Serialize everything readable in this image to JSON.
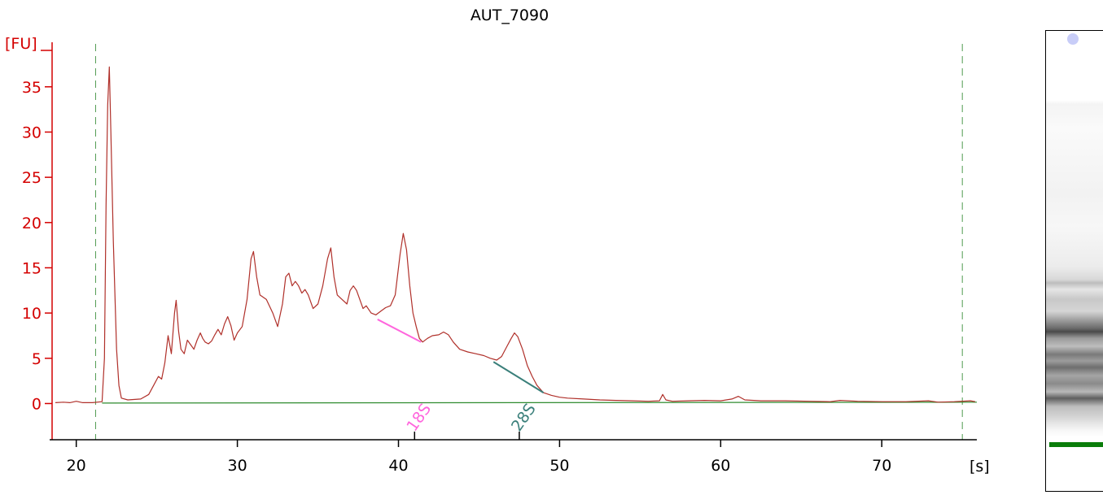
{
  "chart_data": {
    "type": "line",
    "title": "AUT_7090",
    "ylabel": "[FU]",
    "xlabel": "[s]",
    "xlim": [
      18.5,
      75.9
    ],
    "ylim": [
      -4,
      41
    ],
    "x_ticks": [
      20,
      30,
      40,
      50,
      60,
      70
    ],
    "y_ticks": [
      0,
      5,
      10,
      15,
      20,
      25,
      30,
      35
    ],
    "grid": false,
    "colors": {
      "trace": "#b0302a",
      "baseline": "#2e8b2e",
      "y_axis": "#d40000",
      "region_18s": "#ff66dd",
      "region_28s": "#3a7f7a",
      "gel_marker": "#0a7d0a"
    },
    "vertical_markers": [
      21.2,
      75.0
    ],
    "peak_regions": [
      {
        "label": "18S",
        "from": [
          38.7,
          9.3
        ],
        "to": [
          41.4,
          6.8
        ],
        "color": "#ff66dd",
        "tick_x": 41.0
      },
      {
        "label": "28S",
        "from": [
          45.9,
          4.6
        ],
        "to": [
          49.0,
          1.2
        ],
        "color": "#3a7f7a",
        "tick_x": 47.5
      }
    ],
    "series": [
      {
        "points": [
          [
            18.7,
            0.1
          ],
          [
            19.2,
            0.15
          ],
          [
            19.6,
            0.1
          ],
          [
            20.0,
            0.25
          ],
          [
            20.4,
            0.1
          ],
          [
            21.0,
            0.1
          ],
          [
            21.6,
            0.2
          ],
          [
            21.75,
            5.0
          ],
          [
            21.85,
            22.0
          ],
          [
            21.95,
            33.0
          ],
          [
            22.05,
            37.2
          ],
          [
            22.15,
            30.0
          ],
          [
            22.3,
            18.0
          ],
          [
            22.5,
            6.0
          ],
          [
            22.65,
            2.0
          ],
          [
            22.8,
            0.6
          ],
          [
            23.2,
            0.4
          ],
          [
            24.0,
            0.5
          ],
          [
            24.5,
            1.0
          ],
          [
            24.8,
            2.0
          ],
          [
            25.1,
            3.0
          ],
          [
            25.3,
            2.7
          ],
          [
            25.5,
            4.5
          ],
          [
            25.7,
            7.5
          ],
          [
            25.9,
            5.5
          ],
          [
            26.1,
            10.0
          ],
          [
            26.2,
            11.4
          ],
          [
            26.35,
            8.0
          ],
          [
            26.5,
            6.0
          ],
          [
            26.7,
            5.5
          ],
          [
            26.9,
            7.0
          ],
          [
            27.1,
            6.5
          ],
          [
            27.3,
            6.0
          ],
          [
            27.5,
            7.0
          ],
          [
            27.7,
            7.8
          ],
          [
            27.85,
            7.2
          ],
          [
            28.0,
            6.8
          ],
          [
            28.2,
            6.6
          ],
          [
            28.4,
            6.9
          ],
          [
            28.6,
            7.6
          ],
          [
            28.8,
            8.2
          ],
          [
            29.0,
            7.6
          ],
          [
            29.2,
            8.8
          ],
          [
            29.4,
            9.6
          ],
          [
            29.6,
            8.6
          ],
          [
            29.8,
            7.0
          ],
          [
            30.0,
            7.8
          ],
          [
            30.3,
            8.5
          ],
          [
            30.6,
            11.5
          ],
          [
            30.85,
            16.0
          ],
          [
            31.0,
            16.8
          ],
          [
            31.2,
            14.0
          ],
          [
            31.4,
            12.0
          ],
          [
            31.8,
            11.5
          ],
          [
            32.2,
            10.0
          ],
          [
            32.5,
            8.5
          ],
          [
            32.8,
            11.0
          ],
          [
            33.0,
            14.0
          ],
          [
            33.2,
            14.4
          ],
          [
            33.4,
            13.0
          ],
          [
            33.6,
            13.5
          ],
          [
            33.8,
            13.0
          ],
          [
            34.0,
            12.2
          ],
          [
            34.2,
            12.6
          ],
          [
            34.4,
            12.0
          ],
          [
            34.7,
            10.5
          ],
          [
            35.0,
            11.0
          ],
          [
            35.3,
            13.0
          ],
          [
            35.6,
            16.0
          ],
          [
            35.8,
            17.2
          ],
          [
            36.0,
            14.0
          ],
          [
            36.2,
            12.0
          ],
          [
            36.5,
            11.5
          ],
          [
            36.8,
            11.0
          ],
          [
            37.0,
            12.5
          ],
          [
            37.2,
            13.0
          ],
          [
            37.4,
            12.5
          ],
          [
            37.6,
            11.5
          ],
          [
            37.8,
            10.5
          ],
          [
            38.0,
            10.8
          ],
          [
            38.3,
            10.0
          ],
          [
            38.6,
            9.8
          ],
          [
            38.9,
            10.2
          ],
          [
            39.2,
            10.6
          ],
          [
            39.5,
            10.8
          ],
          [
            39.8,
            12.0
          ],
          [
            40.1,
            16.5
          ],
          [
            40.3,
            18.8
          ],
          [
            40.5,
            17.0
          ],
          [
            40.7,
            13.0
          ],
          [
            40.9,
            10.0
          ],
          [
            41.1,
            8.5
          ],
          [
            41.3,
            7.2
          ],
          [
            41.5,
            6.8
          ],
          [
            41.8,
            7.2
          ],
          [
            42.1,
            7.5
          ],
          [
            42.5,
            7.6
          ],
          [
            42.8,
            7.9
          ],
          [
            43.1,
            7.6
          ],
          [
            43.4,
            6.8
          ],
          [
            43.8,
            6.0
          ],
          [
            44.3,
            5.7
          ],
          [
            44.8,
            5.5
          ],
          [
            45.3,
            5.3
          ],
          [
            45.7,
            5.0
          ],
          [
            46.1,
            4.8
          ],
          [
            46.4,
            5.2
          ],
          [
            46.7,
            6.2
          ],
          [
            47.0,
            7.2
          ],
          [
            47.2,
            7.8
          ],
          [
            47.4,
            7.4
          ],
          [
            47.7,
            6.0
          ],
          [
            48.0,
            4.2
          ],
          [
            48.3,
            3.0
          ],
          [
            48.6,
            2.0
          ],
          [
            49.0,
            1.2
          ],
          [
            49.5,
            0.9
          ],
          [
            50.0,
            0.7
          ],
          [
            50.5,
            0.6
          ],
          [
            51.5,
            0.5
          ],
          [
            52.5,
            0.4
          ],
          [
            53.5,
            0.35
          ],
          [
            54.5,
            0.3
          ],
          [
            55.5,
            0.25
          ],
          [
            56.2,
            0.3
          ],
          [
            56.4,
            1.0
          ],
          [
            56.6,
            0.4
          ],
          [
            57.0,
            0.25
          ],
          [
            58.0,
            0.3
          ],
          [
            59.0,
            0.35
          ],
          [
            60.0,
            0.3
          ],
          [
            60.7,
            0.5
          ],
          [
            61.1,
            0.8
          ],
          [
            61.5,
            0.4
          ],
          [
            62.5,
            0.3
          ],
          [
            64.0,
            0.3
          ],
          [
            65.5,
            0.25
          ],
          [
            66.8,
            0.2
          ],
          [
            67.4,
            0.35
          ],
          [
            68.5,
            0.25
          ],
          [
            70.0,
            0.2
          ],
          [
            71.5,
            0.2
          ],
          [
            72.9,
            0.3
          ],
          [
            73.5,
            0.15
          ],
          [
            74.5,
            0.2
          ],
          [
            75.5,
            0.3
          ],
          [
            75.8,
            0.2
          ]
        ]
      }
    ]
  }
}
